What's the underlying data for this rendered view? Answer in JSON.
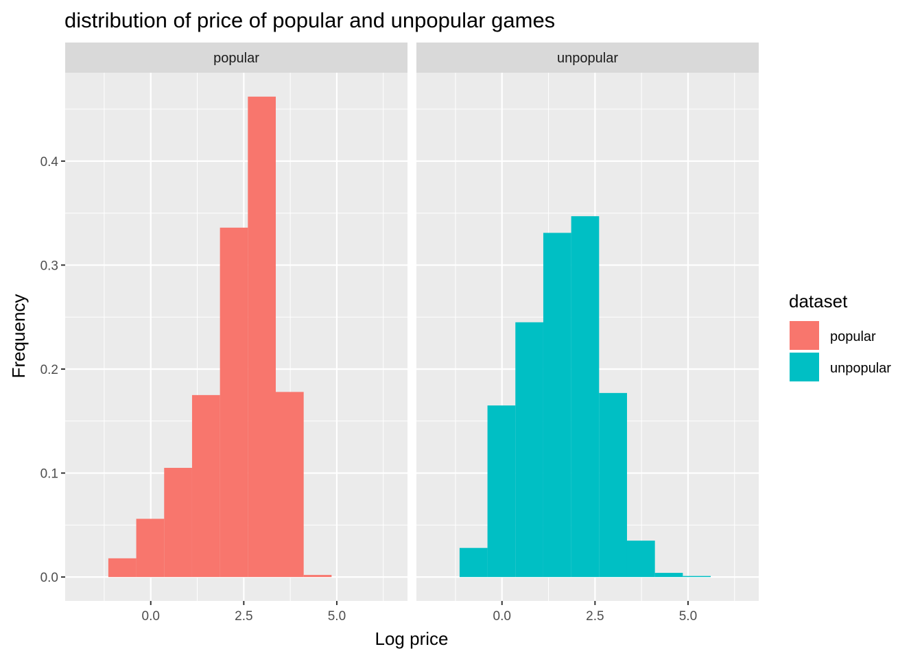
{
  "chart_data": {
    "type": "bar",
    "subtype": "faceted-histogram",
    "title": "distribution of price of popular and unpopular games",
    "xlabel": "Log price",
    "ylabel": "Frequency",
    "xlim": [
      -2.3,
      6.9
    ],
    "ylim": [
      -0.023,
      0.485
    ],
    "x_ticks": [
      0.0,
      2.5,
      5.0
    ],
    "x_tick_labels": [
      "0.0",
      "2.5",
      "5.0"
    ],
    "y_ticks": [
      0.0,
      0.1,
      0.2,
      0.3,
      0.4
    ],
    "y_tick_labels": [
      "0.0",
      "0.1",
      "0.2",
      "0.3",
      "0.4"
    ],
    "grid": true,
    "bin_width": 0.75,
    "legend": {
      "title": "dataset",
      "placement": "right",
      "entries": [
        {
          "label": "popular",
          "color": "#F8766D"
        },
        {
          "label": "unpopular",
          "color": "#00BFC4"
        }
      ]
    },
    "facets": [
      {
        "label": "popular",
        "color": "#F8766D",
        "bins": [
          {
            "x0": -1.14,
            "x1": -0.39,
            "value": 0.018
          },
          {
            "x0": -0.39,
            "x1": 0.36,
            "value": 0.056
          },
          {
            "x0": 0.36,
            "x1": 1.11,
            "value": 0.105
          },
          {
            "x0": 1.11,
            "x1": 1.86,
            "value": 0.175
          },
          {
            "x0": 1.86,
            "x1": 2.61,
            "value": 0.336
          },
          {
            "x0": 2.61,
            "x1": 3.36,
            "value": 0.462
          },
          {
            "x0": 3.36,
            "x1": 4.11,
            "value": 0.178
          },
          {
            "x0": 4.11,
            "x1": 4.86,
            "value": 0.002
          }
        ]
      },
      {
        "label": "unpopular",
        "color": "#00BFC4",
        "bins": [
          {
            "x0": -1.14,
            "x1": -0.39,
            "value": 0.028
          },
          {
            "x0": -0.39,
            "x1": 0.36,
            "value": 0.165
          },
          {
            "x0": 0.36,
            "x1": 1.11,
            "value": 0.245
          },
          {
            "x0": 1.11,
            "x1": 1.86,
            "value": 0.331
          },
          {
            "x0": 1.86,
            "x1": 2.61,
            "value": 0.347
          },
          {
            "x0": 2.61,
            "x1": 3.36,
            "value": 0.177
          },
          {
            "x0": 3.36,
            "x1": 4.11,
            "value": 0.035
          },
          {
            "x0": 4.11,
            "x1": 4.86,
            "value": 0.004
          },
          {
            "x0": 4.86,
            "x1": 5.61,
            "value": 0.001
          }
        ]
      }
    ]
  }
}
